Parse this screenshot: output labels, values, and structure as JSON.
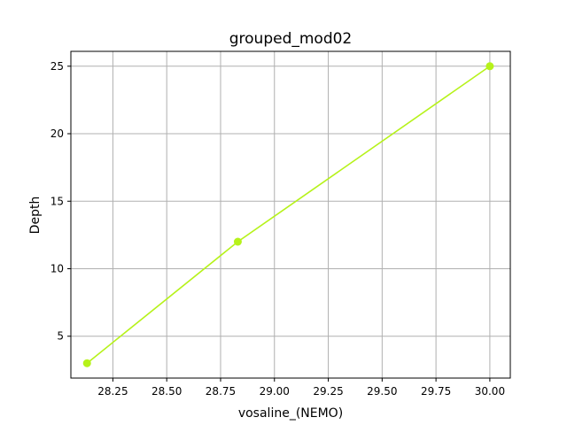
{
  "chart_data": {
    "type": "line",
    "title": "grouped_mod02",
    "xlabel": "vosaline_(NEMO)",
    "ylabel": "Depth",
    "xlim": [
      28.055,
      30.095
    ],
    "ylim": [
      1.9,
      26.1
    ],
    "xticks": [
      28.25,
      28.5,
      28.75,
      29.0,
      29.25,
      29.5,
      29.75,
      30.0
    ],
    "xtick_labels": [
      "28.25",
      "28.50",
      "28.75",
      "29.00",
      "29.25",
      "29.50",
      "29.75",
      "30.00"
    ],
    "yticks": [
      5,
      10,
      15,
      20,
      25
    ],
    "ytick_labels": [
      "5",
      "10",
      "15",
      "20",
      "25"
    ],
    "grid": true,
    "series": [
      {
        "color": "#b6f21a",
        "marker": "circle",
        "x": [
          28.13,
          28.83,
          30.0
        ],
        "y": [
          3,
          12,
          25
        ]
      }
    ]
  }
}
